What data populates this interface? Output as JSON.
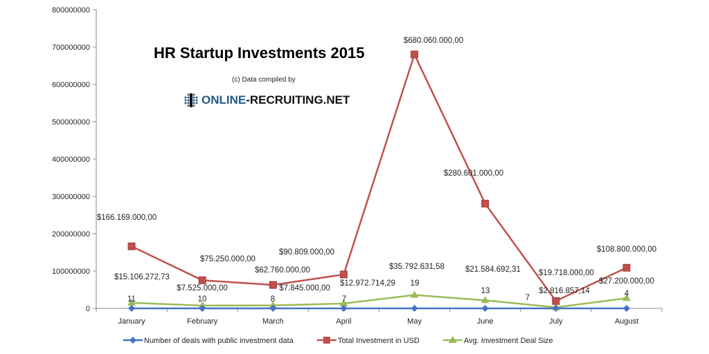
{
  "chart_data": {
    "type": "line",
    "title": "HR Startup Investments 2015",
    "subtitle": "(c) Data compiled by",
    "logo_text": "ONLINE-RECRUITING.NET",
    "categories": [
      "January",
      "February",
      "March",
      "April",
      "May",
      "June",
      "July",
      "August"
    ],
    "ylim": [
      0,
      800000000
    ],
    "yticks": [
      "0",
      "100000000",
      "200000000",
      "300000000",
      "400000000",
      "500000000",
      "600000000",
      "700000000",
      "800000000"
    ],
    "grid": false,
    "legend": "bottom",
    "series": [
      {
        "name": "Number of deals with public investment data",
        "color": "#4472c4",
        "marker": "diamond",
        "values": [
          11,
          10,
          8,
          7,
          19,
          13,
          7,
          4
        ],
        "labels": [
          "11",
          "10",
          "8",
          "7",
          "19",
          "13",
          "7",
          "4"
        ]
      },
      {
        "name": "Total Investment in USD",
        "color": "#c0504d",
        "marker": "square",
        "values": [
          166169000,
          75250000,
          62760000,
          90809000,
          680060000,
          280601000,
          19718000,
          108800000
        ],
        "labels": [
          "$166.169.000,00",
          "$75.250.000,00",
          "$62.760.000,00",
          "$90.809.000,00",
          "$680.060.000,00",
          "$280.601.000,00",
          "$19.718.000,00",
          "$108.800.000,00"
        ]
      },
      {
        "name": "Avg. Investment Deal Size",
        "color": "#9bbb59",
        "marker": "triangle",
        "values": [
          15106272.73,
          7525000,
          7845000,
          12972714.29,
          35792631.58,
          21584692.31,
          2816857.14,
          27200000
        ],
        "labels": [
          "$15.106.272,73",
          "$7.525.000,00",
          "$7.845.000,00",
          "$12.972.714,29",
          "$35.792.631,58",
          "$21.584.692,31",
          "$2.816.857,14",
          "$27.200.000,00"
        ]
      }
    ]
  }
}
